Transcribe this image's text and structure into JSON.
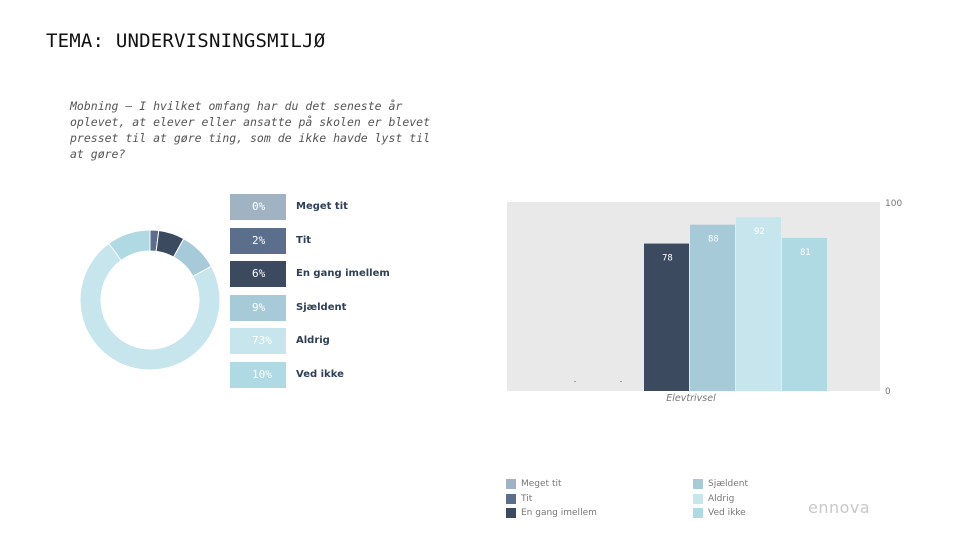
{
  "page": {
    "title": "TEMA: UNDERVISNINGSMILJØ",
    "question": "Mobning – I hvilket omfang har du det seneste år oplevet, at elever eller ansatte på skolen er blevet presset til at gøre ting, som de ikke havde lyst til at gøre?",
    "logo": "ennova"
  },
  "chart_data": [
    {
      "type": "pie",
      "variant": "donut",
      "slices": [
        {
          "label": "Meget tit",
          "value": 0,
          "value_label": "0%",
          "color": "#9fb3c2"
        },
        {
          "label": "Tit",
          "value": 2,
          "value_label": "2%",
          "color": "#5b6e8c"
        },
        {
          "label": "En gang imellem",
          "value": 6,
          "value_label": "6%",
          "color": "#3b4a5f"
        },
        {
          "label": "Sjældent",
          "value": 9,
          "value_label": "9%",
          "color": "#a6cad8"
        },
        {
          "label": "Aldrig",
          "value": 73,
          "value_label": "73%",
          "color": "#c7e5ec"
        },
        {
          "label": "Ved ikke",
          "value": 10,
          "value_label": "10%",
          "color": "#afd9e3"
        }
      ]
    },
    {
      "type": "bar",
      "categories": [
        "Elevtrivsel"
      ],
      "ylim": [
        0,
        100
      ],
      "ytick_labels": [
        "0",
        "100"
      ],
      "grid": false,
      "legend": "bottom",
      "series": [
        {
          "name": "Meget tit",
          "values": [
            null
          ],
          "color": "#9fb3c2"
        },
        {
          "name": "Tit",
          "values": [
            null
          ],
          "color": "#5b6e8c"
        },
        {
          "name": "En gang imellem",
          "values": [
            78
          ],
          "color": "#3b4a5f"
        },
        {
          "name": "Sjældent",
          "values": [
            88
          ],
          "color": "#a6cad8"
        },
        {
          "name": "Aldrig",
          "values": [
            92
          ],
          "color": "#c7e5ec"
        },
        {
          "name": "Ved ikke",
          "values": [
            81
          ],
          "color": "#afd9e3"
        }
      ]
    }
  ]
}
